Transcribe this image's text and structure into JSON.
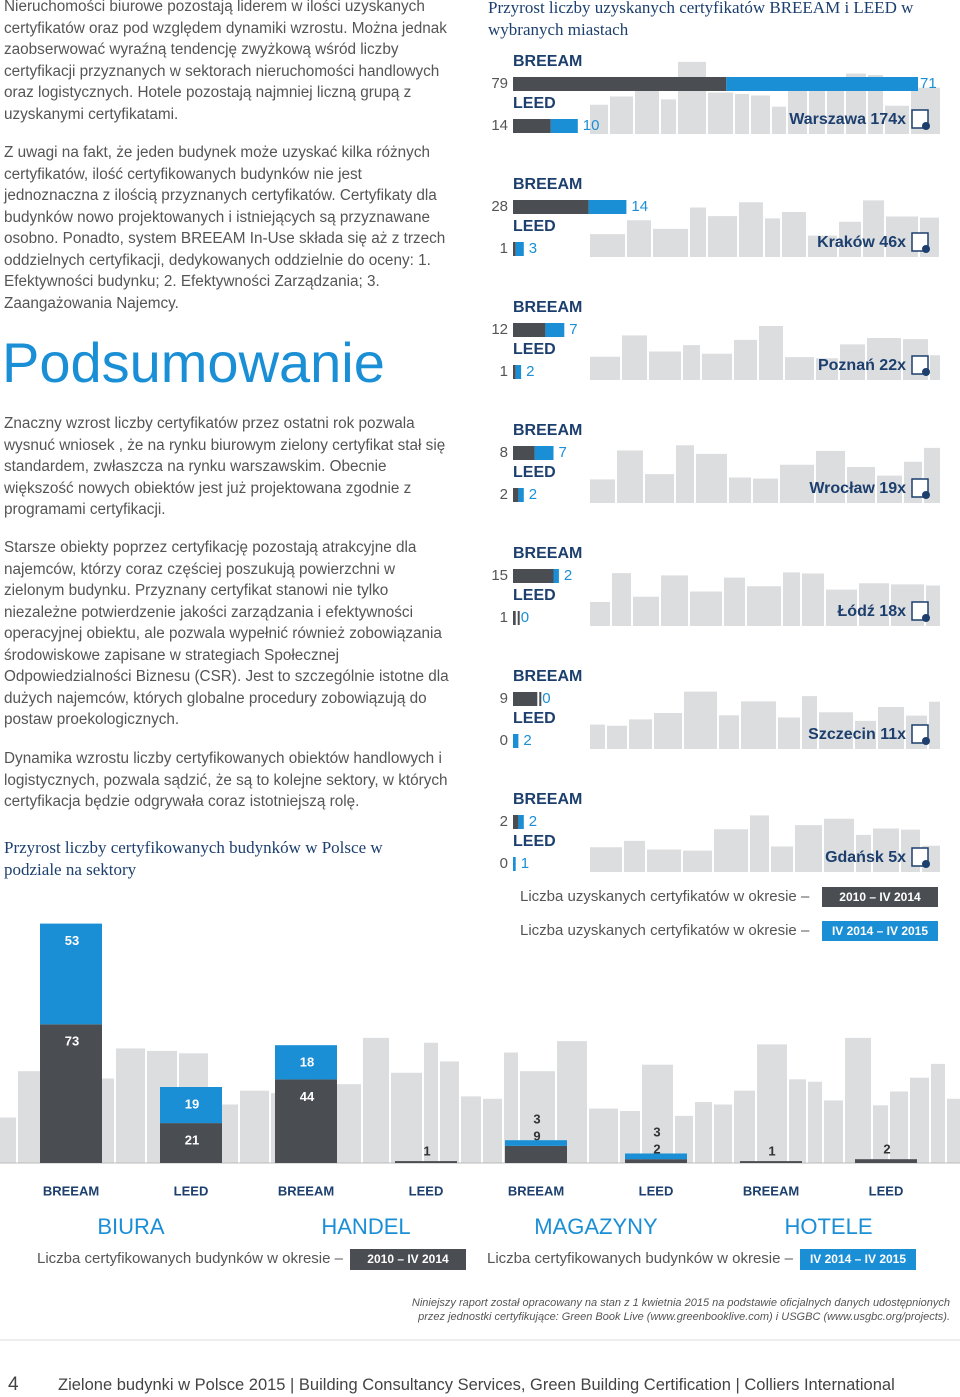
{
  "paragraphs": [
    "Nieruchomości biurowe pozostają liderem w ilości uzyskanych certyfikatów oraz  pod względem dynamiki wzrostu. Można jednak zaobserwować wyraźną tendencję zwyżkową wśród liczby certyfikacji przyznanych w sektorach nieruchomości handlowych oraz logistycznych. Hotele pozostają najmniej liczną grupą z uzyskanymi certyfikatami.",
    "Z uwagi na fakt, że jeden budynek może uzyskać kilka różnych certyfikatów, ilość certyfikowanych budynków nie jest jednoznaczna z ilością przyznanych certyfikatów. Certyfikaty dla budynków nowo projektowanych i istniejących są przyznawane osobno. Ponadto, system BREEAM In-Use składa się aż z trzech oddzielnych certyfikacji, dedykowanych oddzielnie do oceny: 1. Efektywności budynku; 2. Efektywności Zarządzania; 3. Zaangażowania Najemcy."
  ],
  "heading": "Podsumowanie",
  "paragraphs_after": [
    "Znaczny wzrost liczby certyfikatów przez ostatni rok pozwala wysnuć wniosek , że na rynku biurowym zielony certyfikat stał się standardem, zwłaszcza  na rynku warszawskim. Obecnie większość nowych obiektów jest już projektowana zgodnie z programami certyfikacji.",
    "Starsze obiekty poprzez certyfikację pozostają atrakcyjne dla najemców, którzy coraz częściej poszukują powierzchni w zielonym budynku. Przyznany certyfikat stanowi nie tylko niezależne potwierdzenie jakości zarządzania i efektywności operacyjnej obiektu, ale pozwala wypełnić również zobowiązania środowiskowe zapisane w strategiach Społecznej Odpowiedzialności Biznesu (CSR). Jest to szczególnie istotne dla dużych najemców, których globalne procedury zobowiązują do postaw proekologicznych.",
    "Dynamika wzrostu liczby certyfikowanych obiektów handlowych i logistycznych, pozwala sądzić, że są to kolejne sektory, w których certyfikacja będzie odgrywała coraz istotniejszą rolę."
  ],
  "city_chart": {
    "type": "bar",
    "title": "Przyrost liczby uzyskanych certyfikatów BREEAM i LEED w wybranych miastach",
    "systems": [
      "BREEAM",
      "LEED"
    ],
    "colors": [
      "#4a4d52",
      "#1a8fd6"
    ],
    "cities": [
      {
        "label": "Warszawa 174x",
        "breeam": [
          79,
          71
        ],
        "leed": [
          14,
          10
        ]
      },
      {
        "label": "Kraków 46x",
        "breeam": [
          28,
          14
        ],
        "leed": [
          1,
          3
        ]
      },
      {
        "label": "Poznań 22x",
        "breeam": [
          12,
          7
        ],
        "leed": [
          1,
          2
        ]
      },
      {
        "label": "Wrocław 19x",
        "breeam": [
          8,
          7
        ],
        "leed": [
          2,
          2
        ]
      },
      {
        "label": "Łódź 18x",
        "breeam": [
          15,
          2
        ],
        "leed": [
          1,
          0
        ]
      },
      {
        "label": "Szczecin 11x",
        "breeam": [
          9,
          0
        ],
        "leed": [
          0,
          2
        ]
      },
      {
        "label": "Gdańsk 5x",
        "breeam": [
          2,
          2
        ],
        "leed": [
          0,
          1
        ]
      }
    ],
    "legend_text": "Liczba uzyskanych certyfikatów w okresie –",
    "periods": [
      "2010 – IV 2014",
      "IV 2014 – IV 2015"
    ]
  },
  "sector_chart": {
    "type": "stacked-bar",
    "title": "Przyrost liczby certyfikowanych budynków w Polsce w podziale na sektory",
    "sectors": [
      {
        "name": "BIURA",
        "breeam": [
          73,
          53
        ],
        "leed": [
          21,
          19
        ]
      },
      {
        "name": "HANDEL",
        "breeam": [
          44,
          18
        ],
        "leed": [
          1,
          null
        ]
      },
      {
        "name": "MAGAZYNY",
        "breeam": [
          9,
          3
        ],
        "leed": [
          2,
          3
        ]
      },
      {
        "name": "HOTELE",
        "breeam": [
          1,
          null
        ],
        "leed": [
          2,
          null
        ]
      }
    ],
    "legend_text": "Liczba certyfikowanych budynków w okresie –"
  },
  "footnote": [
    "Niniejszy raport został opracowany na stan z 1 kwietnia 2015 na podstawie oficjalnych danych udostępnionych",
    "przez jednostki certyfikujące: Green Book Live (www.greenbooklive.com) i USGBC (www.usgbc.org/projects)."
  ],
  "footer": {
    "page": "4",
    "text": "Zielone budynki w Polsce 2015 | Building Consultancy Services, Green Building Certification | Colliers International"
  }
}
